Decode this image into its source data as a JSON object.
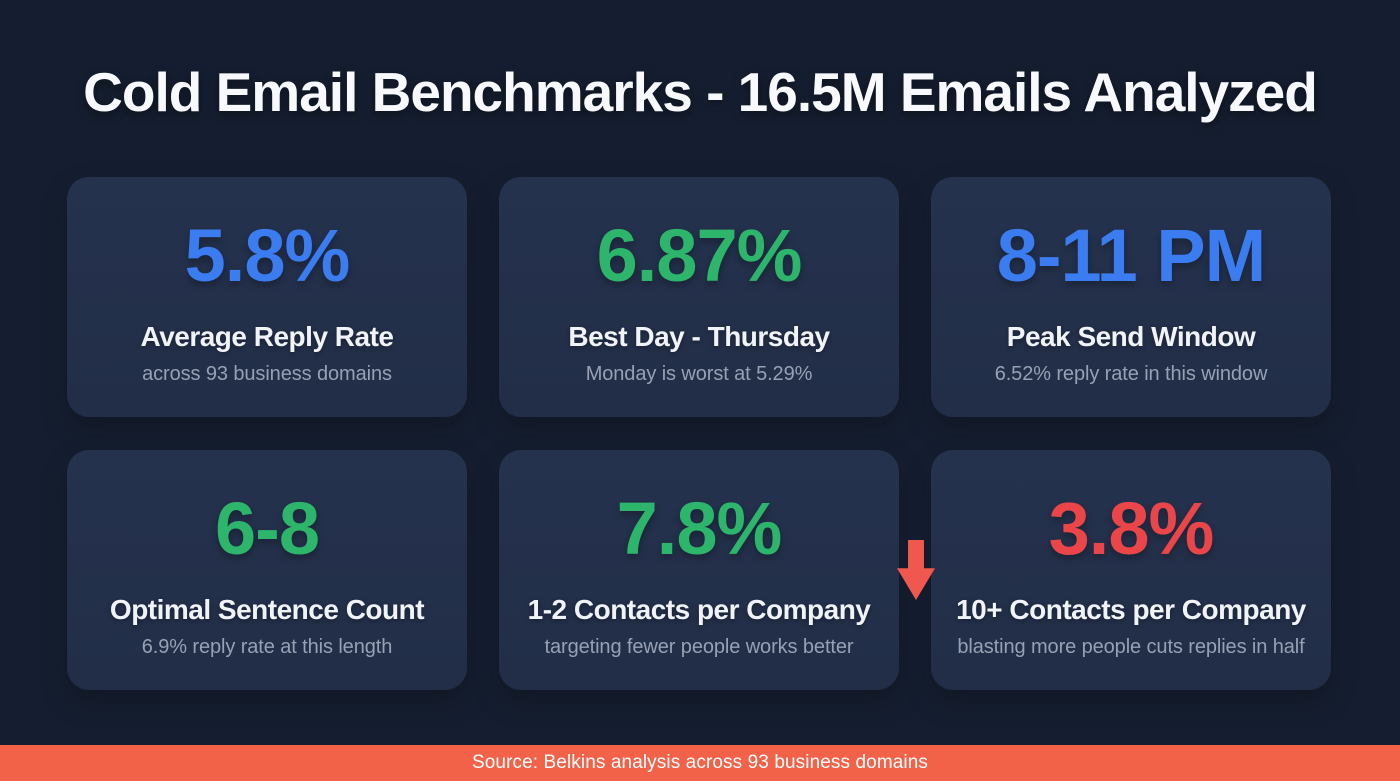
{
  "page": {
    "title": "Cold Email Benchmarks - 16.5M Emails Analyzed",
    "footer": "Source: Belkins analysis across 93 business domains"
  },
  "colors": {
    "background": "#151e30",
    "card": "#243049",
    "blue": "#3b7df0",
    "green": "#2db56c",
    "red": "#ea4649",
    "arrow": "#f0584f",
    "footer_bar": "#f26249",
    "label_text": "#f0f3f8",
    "sub_text": "#97a1b4"
  },
  "cards": [
    {
      "value": "5.8%",
      "label": "Average Reply Rate",
      "note": "across 93 business domains",
      "accent": "#3b7df0"
    },
    {
      "value": "6.87%",
      "label": "Best Day - Thursday",
      "note": "Monday is worst at 5.29%",
      "accent": "#2db56c"
    },
    {
      "value": "8-11 PM",
      "label": "Peak Send Window",
      "note": "6.52% reply rate in this window",
      "accent": "#3b7df0"
    },
    {
      "value": "6-8",
      "label": "Optimal Sentence Count",
      "note": "6.9% reply rate at this length",
      "accent": "#2db56c"
    },
    {
      "value": "7.8%",
      "label": "1-2 Contacts per Company",
      "note": "targeting fewer people works better",
      "accent": "#2db56c"
    },
    {
      "value": "3.8%",
      "label": "10+ Contacts per Company",
      "note": "blasting more people cuts replies in half",
      "accent": "#ea4649"
    }
  ],
  "chart_data": {
    "type": "table",
    "title": "Cold Email Benchmarks - 16.5M Emails Analyzed",
    "metrics": [
      {
        "metric": "Average Reply Rate",
        "value": "5.8%",
        "detail": "across 93 business domains"
      },
      {
        "metric": "Best Day - Thursday",
        "value": "6.87%",
        "detail": "Monday is worst at 5.29%"
      },
      {
        "metric": "Peak Send Window",
        "value": "8-11 PM",
        "detail": "6.52% reply rate in this window"
      },
      {
        "metric": "Optimal Sentence Count",
        "value": "6-8",
        "detail": "6.9% reply rate at this length"
      },
      {
        "metric": "1-2 Contacts per Company",
        "value": "7.8%",
        "detail": "targeting fewer people works better"
      },
      {
        "metric": "10+ Contacts per Company",
        "value": "3.8%",
        "detail": "blasting more people cuts replies in half"
      }
    ],
    "legend_position": "none",
    "source": "Source: Belkins analysis across 93 business domains"
  }
}
